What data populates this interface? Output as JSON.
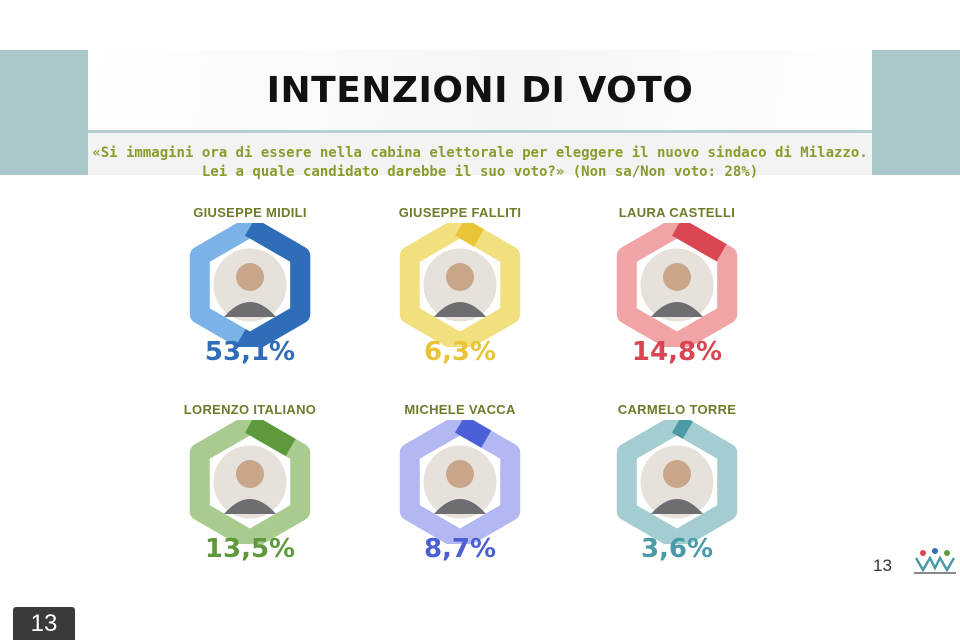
{
  "header": {
    "title": "INTENZIONI DI VOTO",
    "question": "«Si immagini ora di essere nella cabina elettorale per eleggere il nuovo sindaco di Milazzo. Lei a quale candidato darebbe il suo voto?» (Non sa/Non voto: 28%)"
  },
  "chart_data": {
    "type": "pie",
    "unit": "%",
    "series": [
      {
        "name": "GIUSEPPE MIDILI",
        "value": 53.1,
        "label": "53,1%",
        "color": "#2f6db8",
        "light": "#7bb3e8"
      },
      {
        "name": "GIUSEPPE FALLITI",
        "value": 6.3,
        "label": "6,3%",
        "color": "#e8c436",
        "light": "#f2e07e"
      },
      {
        "name": "LAURA CASTELLI",
        "value": 14.8,
        "label": "14,8%",
        "color": "#d94651",
        "light": "#f0a4a6"
      },
      {
        "name": "LORENZO ITALIANO",
        "value": 13.5,
        "label": "13,5%",
        "color": "#5e9a3c",
        "light": "#a9cb8f"
      },
      {
        "name": "MICHELE VACCA",
        "value": 8.7,
        "label": "8,7%",
        "color": "#4b60d6",
        "light": "#b3b7f2"
      },
      {
        "name": "CARMELO TORRE",
        "value": 3.6,
        "label": "3,6%",
        "color": "#4a9aa8",
        "light": "#a4cdd2"
      }
    ]
  },
  "footer": {
    "page_number": "13",
    "corner_badge": "13",
    "logo_icon": "winpoll-logo-icon"
  }
}
